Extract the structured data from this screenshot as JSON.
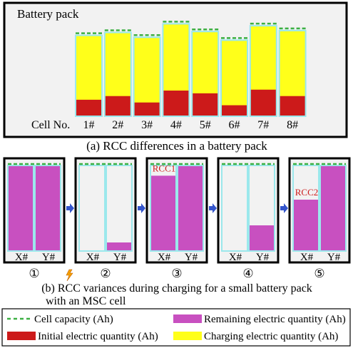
{
  "panel_a": {
    "title": "Battery pack",
    "cell_no_label": "Cell No.",
    "cells": [
      {
        "label": "1#",
        "capacity": 0.92,
        "charged_level": 0.84,
        "initial": 0.18
      },
      {
        "label": "2#",
        "capacity": 0.92,
        "charged_level": 0.87,
        "initial": 0.22
      },
      {
        "label": "3#",
        "capacity": 0.92,
        "charged_level": 0.82,
        "initial": 0.15
      },
      {
        "label": "4#",
        "capacity": 0.92,
        "charged_level": 0.96,
        "initial": 0.28
      },
      {
        "label": "5#",
        "capacity": 0.92,
        "charged_level": 0.88,
        "initial": 0.25
      },
      {
        "label": "6#",
        "capacity": 0.92,
        "charged_level": 0.79,
        "initial": 0.12
      },
      {
        "label": "7#",
        "capacity": 0.92,
        "charged_level": 0.94,
        "initial": 0.29
      },
      {
        "label": "8#",
        "capacity": 0.92,
        "charged_level": 0.89,
        "initial": 0.22
      }
    ],
    "caption": "(a) RCC differences in a battery pack"
  },
  "panel_b": {
    "cell_labels": [
      "X#",
      "Y#"
    ],
    "steps": [
      {
        "number": "①",
        "x_remaining": 1.0,
        "y_remaining": 1.0,
        "note": ""
      },
      {
        "number": "②",
        "x_remaining": 0.0,
        "y_remaining": 0.1,
        "note": ""
      },
      {
        "number": "③",
        "x_remaining": 0.88,
        "y_remaining": 1.0,
        "note": "RCC1"
      },
      {
        "number": "④",
        "x_remaining": 0.0,
        "y_remaining": 0.3,
        "note": ""
      },
      {
        "number": "⑤",
        "x_remaining": 0.6,
        "y_remaining": 1.0,
        "note": "RCC2"
      }
    ],
    "caption_line1": "(b) RCC variances during charging for a small battery pack",
    "caption_line2": "with an MSC cell"
  },
  "legend": {
    "cell_capacity": "Cell capacity (Ah)",
    "remaining": "Remaining electric quantity (Ah)",
    "initial": "Initial electric quantity (Ah)",
    "charging": "Charging electric quantity (Ah)"
  },
  "colors": {
    "capacity_dash": "#3cb043",
    "cell_border": "#9be8ec",
    "remaining": "#c850c0",
    "initial": "#cc1a1a",
    "charging": "#ffff1a",
    "panel_bg": "#f2f2f2",
    "arrow": "#3355cc",
    "spark": "#f5a000"
  }
}
